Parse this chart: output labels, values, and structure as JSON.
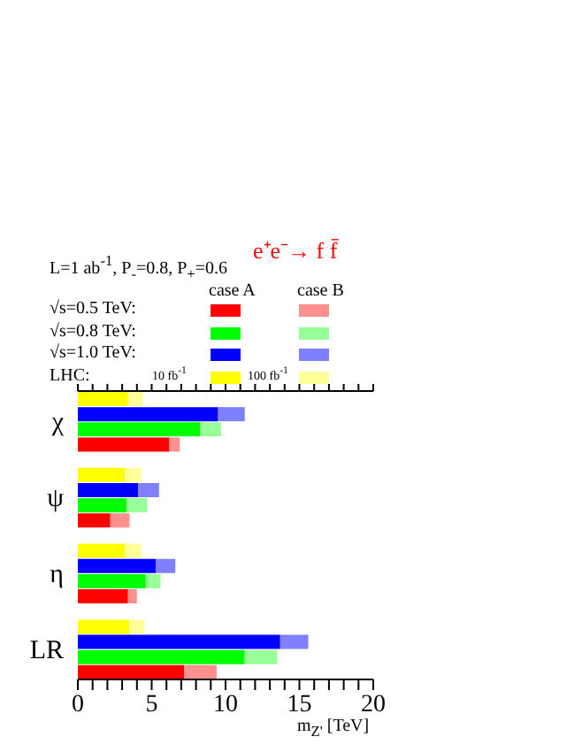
{
  "chart_data": {
    "type": "bar",
    "orientation": "horizontal",
    "stacked": true,
    "title": "e⁺e⁻→ f f̄",
    "xlabel": "m$_{Z'}$ [TeV]",
    "annotations": [
      "L=1 ab$^{-1}$,  P$_{-}$=0.8, P$_{+}$=0.6",
      "√s=0.5 TeV:",
      "√s=0.8 TeV:",
      "√s=1.0 TeV:",
      "LHC:",
      "10 fb$^{-1}$",
      "100 fb$^{-1}$"
    ],
    "categories": [
      null,
      "χ",
      null,
      null,
      null,
      null,
      "ψ",
      null,
      null,
      null,
      null,
      "η",
      null,
      null,
      null,
      null,
      "LR",
      null,
      null
    ],
    "series": [
      {
        "name": "case A",
        "colors": [
          "#ffff00",
          "#0000ff",
          "#00ff00",
          "#ff0000",
          null,
          "#ffff00",
          "#0000ff",
          "#00ff00",
          "#ff0000",
          null,
          "#ffff00",
          "#0000ff",
          "#00ff00",
          "#ff0000",
          null,
          "#ffff00",
          "#0000ff",
          "#00ff00",
          "#ff0000"
        ],
        "values": [
          3.4,
          9.5,
          8.3,
          6.2,
          null,
          3.2,
          4.1,
          3.3,
          2.2,
          null,
          3.2,
          5.3,
          4.6,
          3.4,
          null,
          3.5,
          13.7,
          11.3,
          7.2
        ]
      },
      {
        "name": "case B",
        "colors": [
          "#ffff99",
          "#8080ff",
          "#99ff99",
          "#ff9090",
          null,
          "#ffff99",
          "#8080ff",
          "#99ff99",
          "#ff9090",
          null,
          "#ffff99",
          "#8080ff",
          "#99ff99",
          "#ff9090",
          null,
          "#ffff99",
          "#8080ff",
          "#99ff99",
          "#ff9090"
        ],
        "values": [
          1.0,
          1.8,
          1.4,
          0.7,
          null,
          1.1,
          1.4,
          1.4,
          1.3,
          null,
          1.1,
          1.3,
          1.0,
          0.6,
          null,
          1.0,
          1.9,
          2.2,
          2.2
        ]
      }
    ],
    "xlim": [
      0,
      20
    ],
    "xticks": [
      0,
      {
        "value": 1,
        "label": null
      },
      {
        "value": 2,
        "label": null
      },
      {
        "value": 3,
        "label": null
      },
      {
        "value": 4,
        "label": null
      },
      5,
      {
        "value": 6,
        "label": null
      },
      {
        "value": 7,
        "label": null
      },
      {
        "value": 8,
        "label": null
      },
      {
        "value": 9,
        "label": null
      },
      10,
      {
        "value": 11,
        "label": null
      },
      {
        "value": 12,
        "label": null
      },
      {
        "value": 13,
        "label": null
      },
      {
        "value": 14,
        "label": null
      },
      15,
      {
        "value": 16,
        "label": null
      },
      {
        "value": 17,
        "label": null
      },
      {
        "value": 18,
        "label": null
      },
      {
        "value": 19,
        "label": null
      },
      20
    ],
    "legend": "top"
  }
}
